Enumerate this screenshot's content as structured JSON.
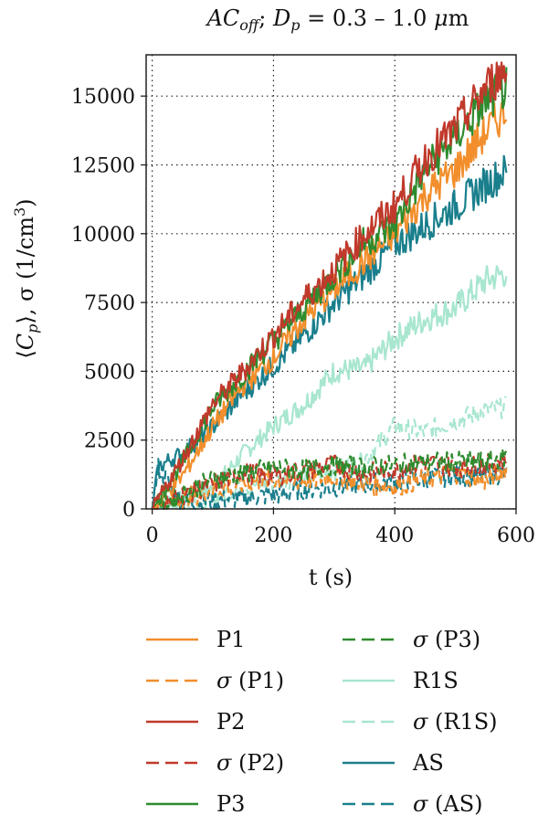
{
  "chart_data": {
    "type": "line",
    "title": "AC_off ; D_p = 0.3 – 1.0 μm",
    "title_parts": {
      "a": "AC",
      "a_sub": "off",
      "sep": "; ",
      "d": "D",
      "d_sub": "p",
      "rest": " = 0.3 – 1.0 ",
      "mu": "μ",
      "unit": "m"
    },
    "xlabel": "t (s)",
    "ylabel": "⟨C_p⟩, σ (1/cm³)",
    "ylabel_parts": {
      "open": "⟨",
      "c": "C",
      "c_sub": "p",
      "close": "⟩, σ (1/cm",
      "sup": "3",
      "end": ")"
    },
    "xlim": [
      -10,
      600
    ],
    "ylim": [
      0,
      16500
    ],
    "x_ticks": [
      "0",
      "200",
      "400",
      "600"
    ],
    "y_ticks": [
      "0",
      "2500",
      "5000",
      "7500",
      "10000",
      "12500",
      "15000"
    ],
    "grid": "dotted, at x ticks 0/200/400 and y ticks 0–15000",
    "legend_position": "below plot, two columns",
    "series": [
      {
        "name": "P1",
        "color": "#f28e2b",
        "dash": "solid",
        "x": [
          0,
          50,
          100,
          150,
          200,
          250,
          300,
          350,
          400,
          450,
          500,
          550,
          585
        ],
        "y": [
          0,
          1200,
          3000,
          4500,
          5500,
          6900,
          8000,
          9000,
          10000,
          11400,
          12300,
          13700,
          14500
        ]
      },
      {
        "name": "σ (P1)",
        "color": "#f28e2b",
        "dash": "dashed",
        "x": [
          0,
          50,
          100,
          150,
          200,
          250,
          300,
          350,
          400,
          450,
          500,
          550,
          585
        ],
        "y": [
          0,
          350,
          700,
          900,
          1100,
          1000,
          1200,
          900,
          800,
          1100,
          1300,
          1000,
          1500
        ]
      },
      {
        "name": "P2",
        "color": "#c0392b",
        "dash": "solid",
        "x": [
          0,
          50,
          100,
          150,
          200,
          250,
          300,
          350,
          400,
          450,
          500,
          550,
          585
        ],
        "y": [
          0,
          1800,
          3800,
          5000,
          6300,
          7600,
          8700,
          10000,
          11000,
          12700,
          13800,
          15300,
          16000
        ]
      },
      {
        "name": "σ (P2)",
        "color": "#c0392b",
        "dash": "dashed",
        "x": [
          0,
          50,
          100,
          150,
          200,
          250,
          300,
          350,
          400,
          450,
          500,
          550,
          585
        ],
        "y": [
          0,
          500,
          900,
          1300,
          1200,
          1400,
          1600,
          1300,
          1400,
          1700,
          1500,
          1600,
          1800
        ]
      },
      {
        "name": "P3",
        "color": "#2e8b2e",
        "dash": "solid",
        "x": [
          0,
          50,
          100,
          150,
          200,
          250,
          300,
          350,
          400,
          450,
          500,
          550,
          585
        ],
        "y": [
          0,
          1700,
          3700,
          4900,
          6100,
          7300,
          8500,
          9700,
          10300,
          12300,
          13500,
          14800,
          15300
        ]
      },
      {
        "name": "σ (P3)",
        "color": "#2e8b2e",
        "dash": "dashed",
        "x": [
          0,
          50,
          100,
          150,
          200,
          250,
          300,
          350,
          400,
          450,
          500,
          550,
          585
        ],
        "y": [
          0,
          500,
          1100,
          1300,
          1500,
          1400,
          1600,
          1500,
          1600,
          1700,
          1700,
          1700,
          1900
        ]
      },
      {
        "name": "R1S",
        "color": "#a8e6cf",
        "dash": "solid",
        "x": [
          0,
          50,
          100,
          150,
          200,
          250,
          300,
          350,
          400,
          450,
          500,
          550,
          585
        ],
        "y": [
          0,
          400,
          800,
          2000,
          3000,
          3800,
          5000,
          5100,
          6200,
          6900,
          7300,
          8300,
          8600
        ]
      },
      {
        "name": "σ (R1S)",
        "color": "#a8e6cf",
        "dash": "dashed",
        "x": [
          0,
          50,
          100,
          150,
          200,
          250,
          300,
          350,
          400,
          450,
          500,
          550,
          585
        ],
        "y": [
          0,
          200,
          400,
          800,
          1000,
          1200,
          1400,
          1800,
          3000,
          2800,
          3200,
          3600,
          3700
        ]
      },
      {
        "name": "AS",
        "color": "#1a7f8c",
        "dash": "solid",
        "x": [
          0,
          10,
          30,
          50,
          100,
          150,
          200,
          250,
          300,
          350,
          400,
          450,
          500,
          550,
          585
        ],
        "y": [
          0,
          1500,
          1800,
          2000,
          3000,
          4200,
          5200,
          6300,
          7500,
          8500,
          9600,
          10300,
          11000,
          11800,
          12300
        ]
      },
      {
        "name": "σ (AS)",
        "color": "#1a7f8c",
        "dash": "dashed",
        "x": [
          0,
          10,
          50,
          100,
          150,
          200,
          250,
          300,
          350,
          400,
          450,
          500,
          550,
          585
        ],
        "y": [
          0,
          1500,
          200,
          300,
          400,
          500,
          700,
          800,
          900,
          1000,
          1100,
          1200,
          1200,
          1300
        ]
      }
    ]
  }
}
